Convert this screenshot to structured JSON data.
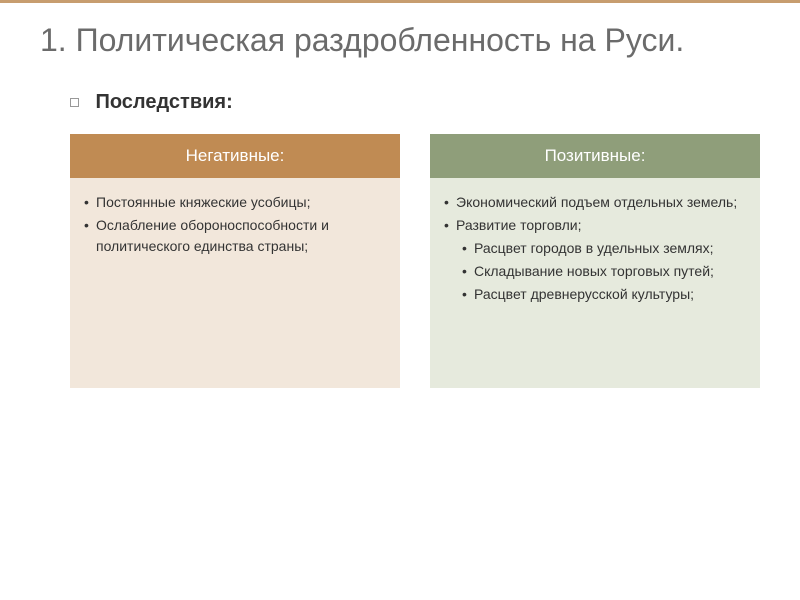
{
  "title": "1. Политическая раздробленность на Руси.",
  "subtitle": "Последствия:",
  "columns": {
    "negative": {
      "header": "Негативные:",
      "header_bg": "#c08b53",
      "body_bg": "#f2e7db",
      "items": [
        "Постоянные княжеские усобицы;",
        "Ослабление обороноспособности и политического единства страны;"
      ]
    },
    "positive": {
      "header": "Позитивные:",
      "header_bg": "#8f9e7a",
      "body_bg": "#e6eadd",
      "items": [
        "Экономический подъем отдельных земель;",
        "Развитие торговли;"
      ],
      "sub_items": [
        "Расцвет городов в удельных землях;",
        "Складывание новых торговых путей;",
        "Расцвет древнерусской культуры;"
      ]
    }
  },
  "colors": {
    "accent_border": "#c79d6f",
    "title_color": "#6b6b6b",
    "text_color": "#333333",
    "white": "#ffffff"
  },
  "typography": {
    "title_fontsize": 32,
    "subtitle_fontsize": 20,
    "header_fontsize": 17,
    "body_fontsize": 14
  }
}
